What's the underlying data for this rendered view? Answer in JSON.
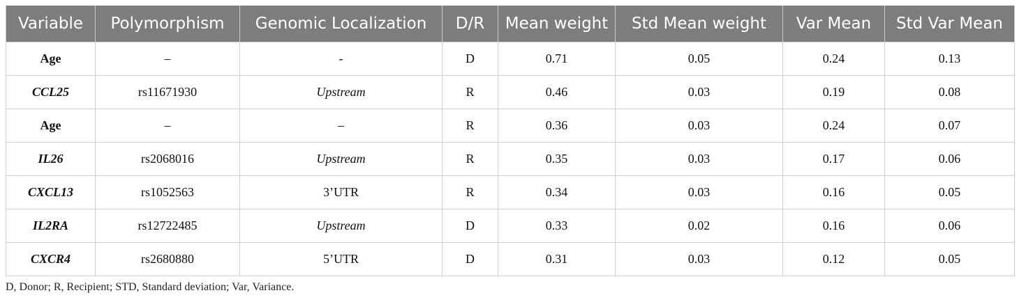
{
  "table": {
    "headers": [
      "Variable",
      "Polymorphism",
      "Genomic Localization",
      "D/R",
      "Mean weight",
      "Std Mean weight",
      "Var Mean",
      "Std Var Mean"
    ],
    "rows": [
      {
        "variable": "Age",
        "polymorphism": "–",
        "localization": "-",
        "dr": "D",
        "mean_weight": "0.71",
        "std_mean_weight": "0.05",
        "var_mean": "0.24",
        "std_var_mean": "0.13"
      },
      {
        "variable": "CCL25",
        "polymorphism": "rs11671930",
        "localization": "Upstream",
        "dr": "R",
        "mean_weight": "0.46",
        "std_mean_weight": "0.03",
        "var_mean": "0.19",
        "std_var_mean": "0.08"
      },
      {
        "variable": "Age",
        "polymorphism": "–",
        "localization": "–",
        "dr": "R",
        "mean_weight": "0.36",
        "std_mean_weight": "0.03",
        "var_mean": "0.24",
        "std_var_mean": "0.07"
      },
      {
        "variable": "IL26",
        "polymorphism": "rs2068016",
        "localization": "Upstream",
        "dr": "R",
        "mean_weight": "0.35",
        "std_mean_weight": "0.03",
        "var_mean": "0.17",
        "std_var_mean": "0.06"
      },
      {
        "variable": "CXCL13",
        "polymorphism": "rs1052563",
        "localization": "3’UTR",
        "dr": "R",
        "mean_weight": "0.34",
        "std_mean_weight": "0.03",
        "var_mean": "0.16",
        "std_var_mean": "0.05"
      },
      {
        "variable": "IL2RA",
        "polymorphism": "rs12722485",
        "localization": "Upstream",
        "dr": "D",
        "mean_weight": "0.33",
        "std_mean_weight": "0.02",
        "var_mean": "0.16",
        "std_var_mean": "0.06"
      },
      {
        "variable": "CXCR4",
        "polymorphism": "rs2680880",
        "localization": "5’UTR",
        "dr": "D",
        "mean_weight": "0.31",
        "std_mean_weight": "0.03",
        "var_mean": "0.12",
        "std_var_mean": "0.05"
      }
    ]
  },
  "footnote": "D, Donor; R, Recipient; STD, Standard deviation; Var, Variance."
}
